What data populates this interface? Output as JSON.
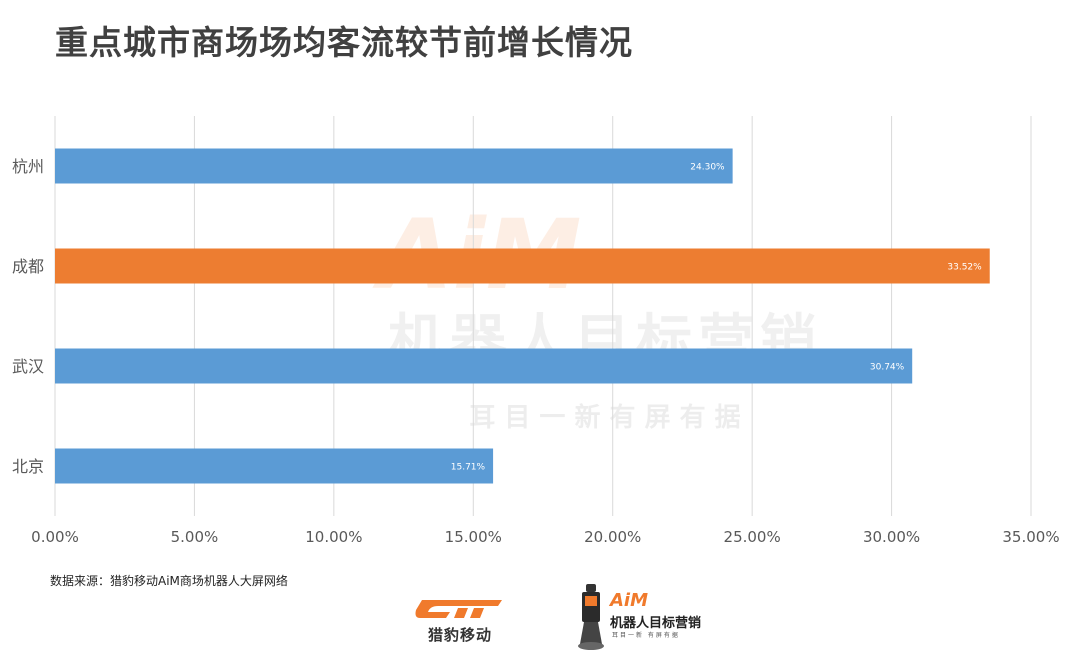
{
  "title": "重点城市商场场均客流较节前增长情况",
  "source_note": "数据来源：猎豹移动AiM商场机器人大屏网络",
  "watermark": {
    "brand": "AiM",
    "name": "机器人目标营销",
    "tagline": "耳 目 一 新   有 屏 有 据"
  },
  "logos": {
    "cheetah": {
      "text": "猎豹移动"
    },
    "aim": {
      "brand": "AiM",
      "name": "机器人目标营销",
      "tagline": "耳目一新 有屏有据"
    }
  },
  "colors": {
    "blue": "#5b9bd5",
    "orange": "#ed7d31",
    "grid": "#d9d9d9",
    "label": "#595959",
    "accent": "#f07a2c"
  },
  "chart_data": {
    "type": "bar",
    "orientation": "horizontal",
    "categories": [
      "杭州",
      "成都",
      "武汉",
      "北京"
    ],
    "values": [
      24.3,
      33.52,
      30.74,
      15.71
    ],
    "data_labels": [
      "24.30%",
      "33.52%",
      "30.74%",
      "15.71%"
    ],
    "highlight": [
      "blue",
      "orange",
      "blue",
      "blue"
    ],
    "xlim": [
      0,
      35
    ],
    "xticks": [
      0,
      5,
      10,
      15,
      20,
      25,
      30,
      35
    ],
    "xtick_labels": [
      "0.00%",
      "5.00%",
      "10.00%",
      "15.00%",
      "20.00%",
      "25.00%",
      "30.00%",
      "35.00%"
    ],
    "grid": true,
    "xlabel": "",
    "ylabel": ""
  }
}
